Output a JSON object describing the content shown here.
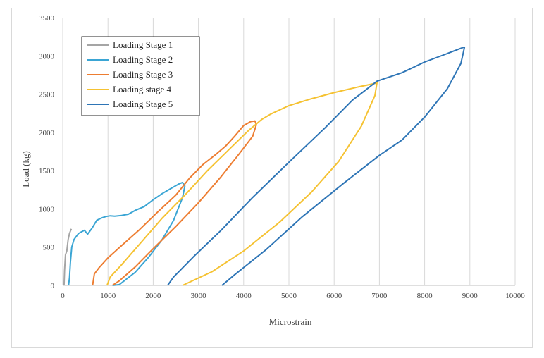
{
  "chart_data": {
    "type": "line",
    "title": "",
    "xlabel": "Microstrain",
    "ylabel": "Load (kg)",
    "xlim": [
      0,
      10000
    ],
    "ylim": [
      0,
      3500
    ],
    "xticks": [
      "0",
      "1000",
      "2000",
      "3000",
      "4000",
      "5000",
      "6000",
      "7000",
      "8000",
      "9000",
      "10000"
    ],
    "yticks": [
      "0",
      "500",
      "1000",
      "1500",
      "2000",
      "2500",
      "3000",
      "3500"
    ],
    "grid": "vertical",
    "legend_position": "top-left",
    "series": [
      {
        "name": "Loading Stage 1",
        "color": "#a5a5a5",
        "points": [
          [
            30,
            0
          ],
          [
            40,
            200
          ],
          [
            60,
            400
          ],
          [
            90,
            450
          ],
          [
            120,
            600
          ],
          [
            150,
            680
          ],
          [
            190,
            740
          ]
        ]
      },
      {
        "name": "Loading Stage 2",
        "color": "#3aa5d4",
        "points": [
          [
            130,
            0
          ],
          [
            150,
            100
          ],
          [
            170,
            300
          ],
          [
            200,
            500
          ],
          [
            250,
            600
          ],
          [
            350,
            680
          ],
          [
            480,
            720
          ],
          [
            550,
            670
          ],
          [
            650,
            750
          ],
          [
            750,
            850
          ],
          [
            850,
            880
          ],
          [
            950,
            900
          ],
          [
            1050,
            910
          ],
          [
            1150,
            905
          ],
          [
            1300,
            915
          ],
          [
            1450,
            930
          ],
          [
            1600,
            980
          ],
          [
            1800,
            1030
          ],
          [
            2000,
            1120
          ],
          [
            2200,
            1200
          ],
          [
            2400,
            1270
          ],
          [
            2580,
            1330
          ],
          [
            2650,
            1345
          ],
          [
            2700,
            1300
          ],
          [
            2650,
            1150
          ],
          [
            2450,
            850
          ],
          [
            2200,
            600
          ],
          [
            1900,
            370
          ],
          [
            1600,
            170
          ],
          [
            1250,
            10
          ],
          [
            1100,
            0
          ]
        ]
      },
      {
        "name": "Loading Stage 3",
        "color": "#ed7d31",
        "points": [
          [
            660,
            0
          ],
          [
            700,
            150
          ],
          [
            800,
            230
          ],
          [
            1000,
            360
          ],
          [
            1300,
            520
          ],
          [
            1700,
            730
          ],
          [
            2100,
            960
          ],
          [
            2500,
            1180
          ],
          [
            2800,
            1400
          ],
          [
            3100,
            1580
          ],
          [
            3400,
            1720
          ],
          [
            3600,
            1820
          ],
          [
            3800,
            1950
          ],
          [
            4000,
            2090
          ],
          [
            4150,
            2140
          ],
          [
            4250,
            2150
          ],
          [
            4280,
            2100
          ],
          [
            4200,
            1950
          ],
          [
            3900,
            1720
          ],
          [
            3500,
            1420
          ],
          [
            3000,
            1080
          ],
          [
            2500,
            770
          ],
          [
            2000,
            480
          ],
          [
            1600,
            240
          ],
          [
            1250,
            60
          ],
          [
            1100,
            0
          ]
        ]
      },
      {
        "name": "Loading stage 4",
        "color": "#f5c232",
        "points": [
          [
            980,
            0
          ],
          [
            1050,
            110
          ],
          [
            1300,
            270
          ],
          [
            1700,
            540
          ],
          [
            2200,
            880
          ],
          [
            2700,
            1180
          ],
          [
            3200,
            1500
          ],
          [
            3700,
            1790
          ],
          [
            4100,
            2020
          ],
          [
            4400,
            2170
          ],
          [
            4600,
            2240
          ],
          [
            5000,
            2350
          ],
          [
            5500,
            2440
          ],
          [
            6000,
            2520
          ],
          [
            6500,
            2590
          ],
          [
            6900,
            2640
          ],
          [
            6950,
            2660
          ],
          [
            6900,
            2480
          ],
          [
            6600,
            2080
          ],
          [
            6100,
            1620
          ],
          [
            5500,
            1220
          ],
          [
            4800,
            830
          ],
          [
            4000,
            450
          ],
          [
            3300,
            180
          ],
          [
            2650,
            0
          ]
        ]
      },
      {
        "name": "Loading Stage 5",
        "color": "#2e75b6",
        "points": [
          [
            2320,
            0
          ],
          [
            2450,
            110
          ],
          [
            2900,
            380
          ],
          [
            3500,
            720
          ],
          [
            4200,
            1150
          ],
          [
            5000,
            1610
          ],
          [
            5800,
            2060
          ],
          [
            6400,
            2420
          ],
          [
            6950,
            2670
          ],
          [
            7500,
            2780
          ],
          [
            8000,
            2920
          ],
          [
            8500,
            3030
          ],
          [
            8850,
            3110
          ],
          [
            8880,
            3110
          ],
          [
            8800,
            2900
          ],
          [
            8500,
            2570
          ],
          [
            8000,
            2200
          ],
          [
            7500,
            1900
          ],
          [
            7000,
            1700
          ],
          [
            6200,
            1330
          ],
          [
            5300,
            900
          ],
          [
            4500,
            470
          ],
          [
            3800,
            140
          ],
          [
            3520,
            0
          ]
        ]
      }
    ]
  }
}
